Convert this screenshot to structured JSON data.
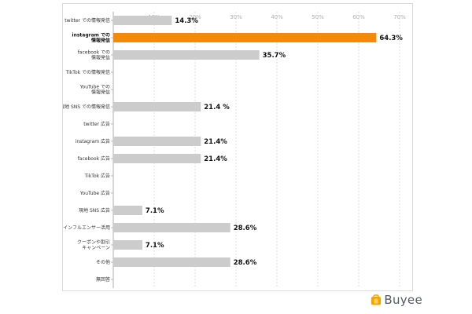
{
  "chart_data": {
    "type": "bar",
    "orientation": "horizontal",
    "categories": [
      [
        "twitter での情報発信"
      ],
      [
        "instagram での",
        "情報発信"
      ],
      [
        "facebook での",
        "情報発信"
      ],
      [
        "TikTok での情報発信"
      ],
      [
        "YouTube での",
        "情報発信"
      ],
      [
        "現地 SNS での情報発信"
      ],
      [
        "twitter 広告"
      ],
      [
        "instagram 広告"
      ],
      [
        "facebook 広告"
      ],
      [
        "TikTok 広告"
      ],
      [
        "YouTube 広告"
      ],
      [
        "現地 SNS 広告"
      ],
      [
        "インフルエンサー活用"
      ],
      [
        "クーポンや割引",
        "キャンペーン"
      ],
      [
        "その他"
      ],
      [
        "無回答"
      ]
    ],
    "values": [
      14.3,
      64.3,
      35.7,
      null,
      null,
      21.4,
      null,
      21.4,
      21.4,
      null,
      null,
      7.1,
      28.6,
      7.1,
      28.6,
      null
    ],
    "value_labels": [
      "14.3%",
      "64.3%",
      "35.7%",
      "",
      "",
      "21.4 %",
      "",
      "21.4%",
      "21.4%",
      "",
      "",
      "7.1%",
      "28.6%",
      "7.1%",
      "28.6%",
      ""
    ],
    "highlight_index": 1,
    "xlim": [
      0,
      70
    ],
    "xticks": [
      10,
      20,
      30,
      40,
      50,
      60,
      70
    ],
    "tick_labels": [
      "10%",
      "20%",
      "30%",
      "40%",
      "50%",
      "60%",
      "70%"
    ],
    "grid": true,
    "title": "",
    "xlabel": "",
    "ylabel": "",
    "colors": {
      "bar": "#cccccc",
      "highlight": "#f58a0a",
      "grid": "#c8c8c8",
      "axis": "#999999"
    }
  },
  "brand": {
    "name": "Buyee",
    "icon": "buyee-bag-icon",
    "color": "#f5a300"
  }
}
